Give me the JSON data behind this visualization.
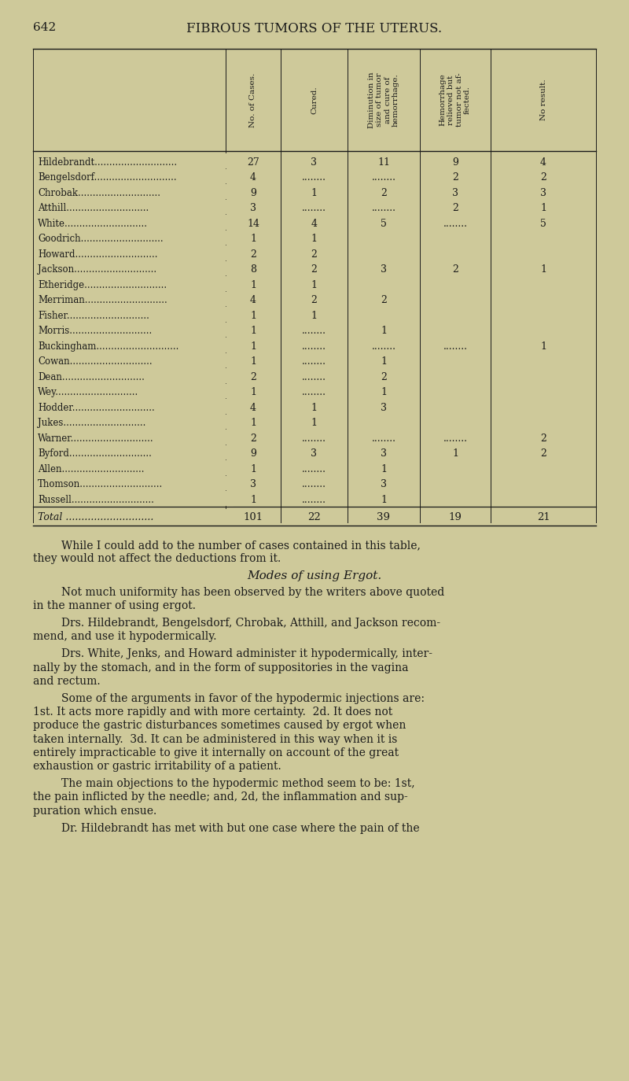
{
  "page_number": "642",
  "page_title": "FIBROUS TUMORS OF THE UTERUS.",
  "bg_color": "#cec99a",
  "text_color": "#1a1a1a",
  "col_headers": [
    "No. of Cases.",
    "Cured.",
    "Diminution in\nsize of tumor\nand cure of\nhemorrhage.",
    "Hemorrhage\nrelieved but\ntumor not af-\nfected.",
    "No result."
  ],
  "rows": [
    [
      "Hildebrandt",
      "27",
      "3",
      "11",
      "9",
      "4"
    ],
    [
      "Bengelsdorf",
      "4",
      "........",
      "........",
      "2",
      "2"
    ],
    [
      "Chrobak",
      "9",
      "1",
      "2",
      "3",
      "3"
    ],
    [
      "Atthill",
      "3",
      "........",
      "........",
      "2",
      "1"
    ],
    [
      "White",
      "14",
      "4",
      "5",
      "........",
      "5"
    ],
    [
      "Goodrich",
      "1",
      "1",
      "",
      "",
      ""
    ],
    [
      "Howard",
      "2",
      "2",
      "",
      "",
      ""
    ],
    [
      "Jackson",
      "8",
      "2",
      "3",
      "2",
      "1"
    ],
    [
      "Etheridge",
      "1",
      "1",
      "",
      "",
      ""
    ],
    [
      "Merriman",
      "4",
      "2",
      "2",
      "",
      ""
    ],
    [
      "Fisher",
      "1",
      "1",
      "",
      "",
      ""
    ],
    [
      "Morris",
      "1",
      "........",
      "1",
      "",
      ""
    ],
    [
      "Buckingham",
      "1",
      "........",
      "........",
      "........",
      "1"
    ],
    [
      "Cowan",
      "1",
      "........",
      "1",
      "",
      ""
    ],
    [
      "Dean",
      "2",
      "........",
      "2",
      "",
      ""
    ],
    [
      "Wey",
      "1",
      "........",
      "1",
      "",
      ""
    ],
    [
      "Hodder",
      "4",
      "1",
      "3",
      "",
      ""
    ],
    [
      "Jukes",
      "1",
      "1",
      "",
      "",
      ""
    ],
    [
      "Warner",
      "2",
      "........",
      "........",
      "........",
      "2"
    ],
    [
      "Byford",
      "9",
      "3",
      "3",
      "1",
      "2"
    ],
    [
      "Allen",
      "1",
      "........",
      "1",
      "",
      ""
    ],
    [
      "Thomson",
      "3",
      "........",
      "3",
      "",
      ""
    ],
    [
      "Russell",
      "1",
      "........",
      "1",
      "",
      ""
    ]
  ],
  "total_row": [
    "Total",
    "101",
    "22",
    "39",
    "19",
    "21"
  ],
  "body_paragraphs": [
    [
      "indent",
      "While I could add to the number of cases contained in this table,"
    ],
    [
      "noindent",
      "they would not affect the deductions from it."
    ],
    [
      "italic_center",
      "Modes of using Ergot."
    ],
    [
      "indent",
      "Not much uniformity has been observed by the writers above quoted"
    ],
    [
      "noindent",
      "in the manner of using ergot."
    ],
    [
      "indent",
      "Drs. Hildebrandt, Bengelsdorf, Chrobak, Atthill, and Jackson recom-"
    ],
    [
      "noindent",
      "mend, and use it hypodermically."
    ],
    [
      "indent",
      "Drs. White, Jenks, and Howard administer it hypodermically, inter-"
    ],
    [
      "noindent",
      "nally by the stomach, and in the form of suppositories in the vagina"
    ],
    [
      "noindent",
      "and rectum."
    ],
    [
      "indent",
      "Some of the arguments in favor of the hypodermic injections are:"
    ],
    [
      "noindent",
      "1st. It acts more rapidly and with more certainty.  2d. It does not"
    ],
    [
      "noindent",
      "produce the gastric disturbances sometimes caused by ergot when"
    ],
    [
      "noindent",
      "taken internally.  3d. It can be administered in this way when it is"
    ],
    [
      "noindent",
      "entirely impracticable to give it internally on account of the great"
    ],
    [
      "noindent",
      "exhaustion or gastric irritability of a patient."
    ],
    [
      "indent",
      "The main objections to the hypodermic method seem to be: 1st,"
    ],
    [
      "noindent",
      "the pain inflicted by the needle; and, 2d, the inflammation and sup-"
    ],
    [
      "noindent",
      "puration which ensue."
    ],
    [
      "indent",
      "Dr. Hildebrandt has met with but one case where the pain of the"
    ]
  ]
}
